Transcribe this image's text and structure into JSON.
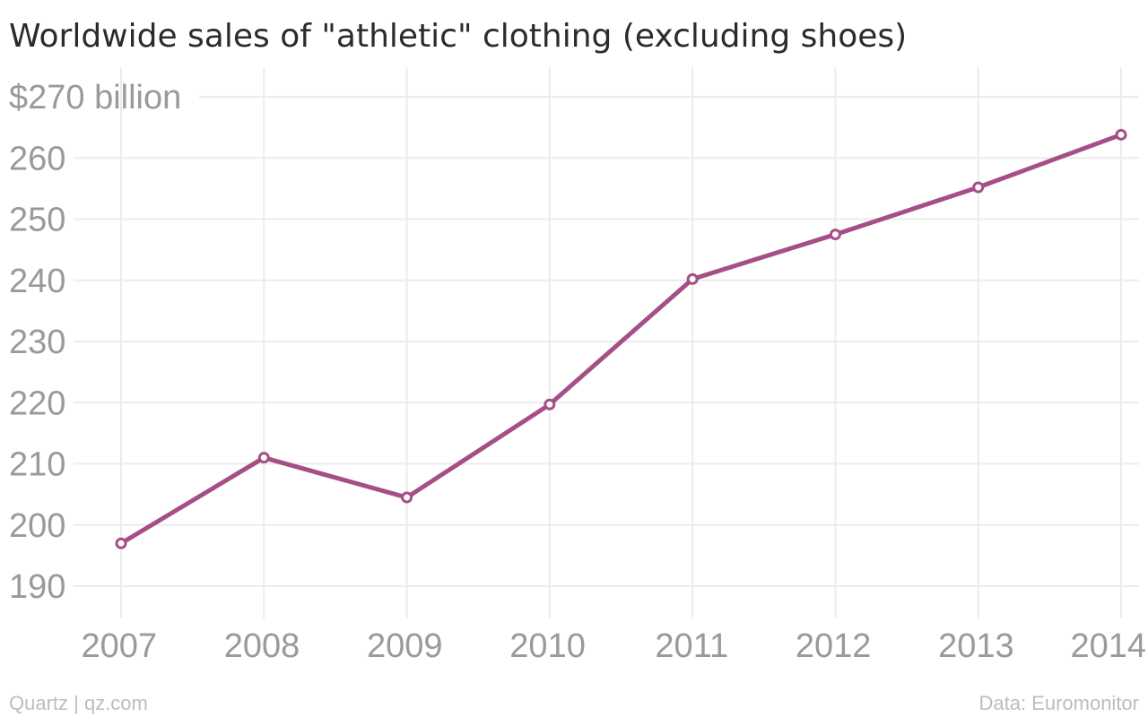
{
  "chart_data": {
    "type": "line",
    "title": "Worldwide sales of \"athletic\" clothing (excluding shoes)",
    "x": [
      "2007",
      "2008",
      "2009",
      "2010",
      "2011",
      "2012",
      "2013",
      "2014"
    ],
    "series": [
      {
        "values": [
          197,
          211,
          204.5,
          219.7,
          240.2,
          247.5,
          255.2,
          263.8
        ]
      }
    ],
    "yticks": [
      "$270 billion",
      "260",
      "250",
      "240",
      "230",
      "220",
      "210",
      "200",
      "190"
    ],
    "ytick_values": [
      270,
      260,
      250,
      240,
      230,
      220,
      210,
      200,
      190
    ],
    "ylim": [
      185,
      272
    ],
    "grid": true,
    "line_color": "#a54f86",
    "marker_fill": "#ffffff"
  },
  "footer": {
    "source_left": "Quartz | qz.com",
    "source_right": "Data: Euromonitor"
  }
}
